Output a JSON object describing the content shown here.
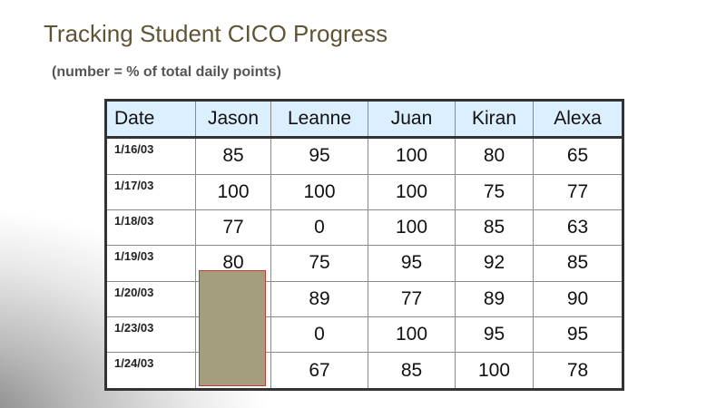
{
  "slide": {
    "title": "Tracking Student CICO Progress",
    "subtitle": "(number = % of total daily points)"
  },
  "table": {
    "headers": [
      "Date",
      "Jason",
      "Leanne",
      "Juan",
      "Kiran",
      "Alexa"
    ],
    "rows": [
      {
        "date": "1/16/03",
        "values": [
          "85",
          "95",
          "100",
          "80",
          "65"
        ]
      },
      {
        "date": "1/17/03",
        "values": [
          "100",
          "100",
          "100",
          "75",
          "77"
        ]
      },
      {
        "date": "1/18/03",
        "values": [
          "77",
          "0",
          "100",
          "85",
          "63"
        ]
      },
      {
        "date": "1/19/03",
        "values": [
          "80",
          "75",
          "95",
          "92",
          "85"
        ]
      },
      {
        "date": "1/20/03",
        "values": [
          "",
          "89",
          "77",
          "89",
          "90"
        ]
      },
      {
        "date": "1/23/03",
        "values": [
          "",
          "0",
          "100",
          "95",
          "95"
        ]
      },
      {
        "date": "1/24/03",
        "values": [
          "",
          "67",
          "85",
          "100",
          "78"
        ]
      }
    ]
  },
  "colors": {
    "title": "#5f5535",
    "header_bg": "#dcefff",
    "redaction_fill": "#a59e7d",
    "redaction_border": "#c33a3a"
  }
}
